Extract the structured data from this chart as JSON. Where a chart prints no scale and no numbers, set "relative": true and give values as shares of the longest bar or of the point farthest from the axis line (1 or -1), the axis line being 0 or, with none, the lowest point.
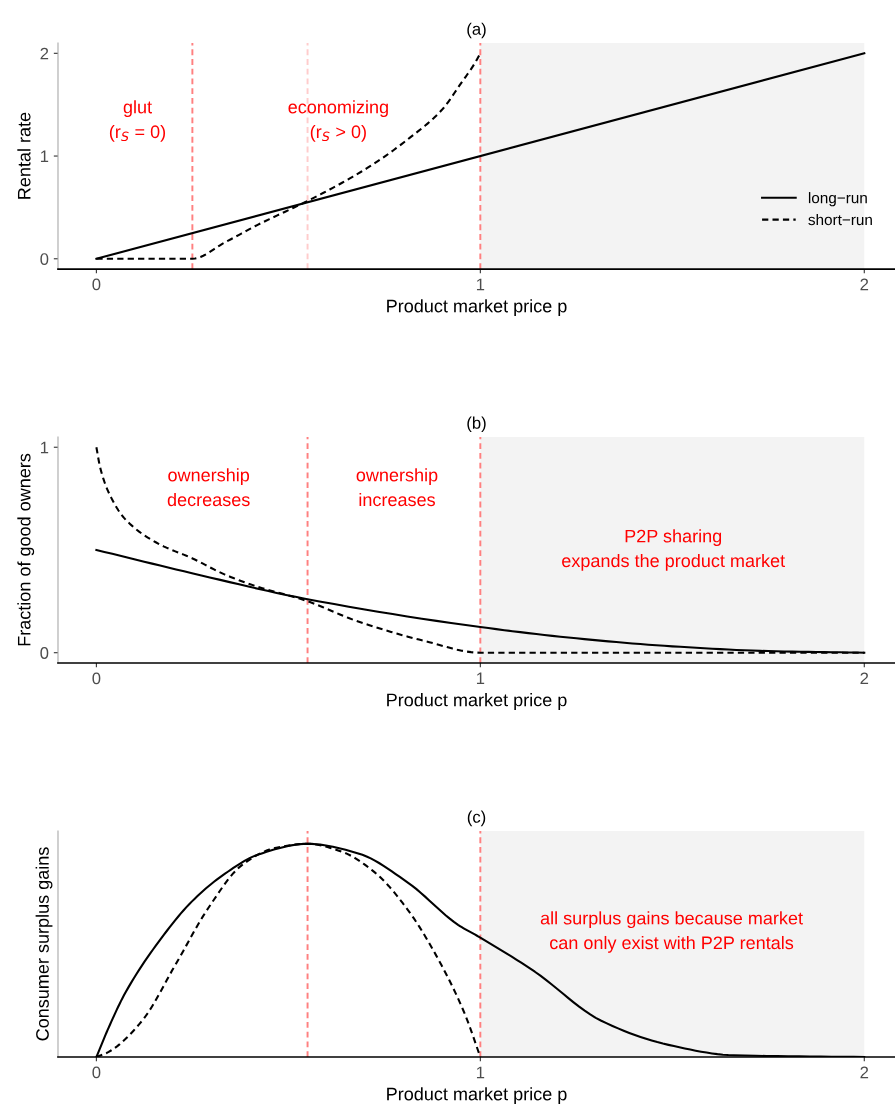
{
  "chart_data": [
    {
      "type": "line",
      "title": "(a)",
      "xlabel": "Product market price p",
      "ylabel": "Rental rate",
      "xlim": [
        -0.1,
        2.08
      ],
      "ylim": [
        -0.1,
        2.1
      ],
      "xticks": [
        0,
        1,
        2
      ],
      "yticks": [
        0,
        1,
        2
      ],
      "grid": false,
      "legend": "right",
      "series": [
        {
          "name": "long−run",
          "color": "#000000",
          "line_style": "solid",
          "x": [
            0,
            2
          ],
          "values": [
            0,
            2
          ]
        },
        {
          "name": "short−run",
          "color": "#000000",
          "line_style": "dashed",
          "x": [
            0,
            0.25,
            0.335,
            0.42,
            0.543,
            0.64,
            0.725,
            0.81,
            0.9,
            0.95,
            0.985,
            1.0
          ],
          "values": [
            0,
            0,
            0.16,
            0.33,
            0.55,
            0.74,
            0.93,
            1.16,
            1.45,
            1.71,
            1.9,
            2.0
          ]
        }
      ],
      "ref_lines": [
        {
          "axis": "x",
          "value": 0.25,
          "color": "#ff8080",
          "line_style": "dashed"
        },
        {
          "axis": "x",
          "value": 0.55,
          "color": "#ffcccc",
          "line_style": "dashed"
        },
        {
          "axis": "x",
          "value": 1,
          "color": "#ff8080",
          "line_style": "dashed"
        }
      ],
      "bands": [
        {
          "axis": "x",
          "from": 1,
          "to": 2,
          "color": "#f3f3f3"
        }
      ],
      "annotations": [
        "glut\n(r$_{S}$ = 0)",
        "economizing\n(r$_{S}$ > 0)"
      ]
    },
    {
      "type": "line",
      "title": "(b)",
      "xlabel": "Product market price p",
      "ylabel": "Fraction of good owners",
      "xlim": [
        -0.1,
        2.08
      ],
      "ylim": [
        -0.05,
        1.05
      ],
      "xticks": [
        0,
        1,
        2
      ],
      "yticks": [
        0,
        1
      ],
      "grid": false,
      "series": [
        {
          "color": "#000000",
          "line_style": "solid",
          "x": [
            0,
            0.249,
            0.543,
            1.0,
            1.25,
            1.5,
            1.75,
            2.0
          ],
          "values": [
            0.5,
            0.387,
            0.263,
            0.125,
            0.07,
            0.031,
            0.008,
            0
          ]
        },
        {
          "color": "#000000",
          "line_style": "dashed",
          "x": [
            0,
            0.01,
            0.032,
            0.075,
            0.162,
            0.249,
            0.335,
            0.422,
            0.543,
            0.68,
            0.855,
            1.0,
            2.0
          ],
          "values": [
            1.0,
            0.9,
            0.78,
            0.65,
            0.53,
            0.46,
            0.38,
            0.32,
            0.255,
            0.153,
            0.057,
            0,
            0
          ]
        }
      ],
      "ref_lines": [
        {
          "axis": "x",
          "value": 0.55,
          "color": "#ff8080",
          "line_style": "dashed"
        },
        {
          "axis": "x",
          "value": 1,
          "color": "#ff8080",
          "line_style": "dashed"
        }
      ],
      "bands": [
        {
          "axis": "x",
          "from": 1,
          "to": 2,
          "color": "#f3f3f3"
        }
      ],
      "annotations": [
        "ownership\ndecreases",
        "ownership\nincreases",
        "P2P sharing\nexpands the product market"
      ]
    },
    {
      "type": "line",
      "title": "(c)",
      "xlabel": "Product market price p",
      "ylabel": "Consumer surplus gains",
      "xlim": [
        -0.1,
        2.08
      ],
      "xticks": [
        0,
        1,
        2
      ],
      "relative": true,
      "grid": false,
      "series": [
        {
          "color": "#000000",
          "line_style": "solid",
          "x": [
            0,
            0.032,
            0.075,
            0.162,
            0.249,
            0.335,
            0.422,
            0.55,
            0.682,
            0.812,
            0.942,
            1.0,
            1.142,
            1.315,
            1.49,
            1.66,
            2.0
          ],
          "values": [
            0,
            0.138,
            0.3,
            0.54,
            0.73,
            0.86,
            0.95,
            1.0,
            0.955,
            0.817,
            0.62,
            0.56,
            0.4,
            0.17,
            0.057,
            0.008,
            0
          ]
        },
        {
          "color": "#000000",
          "line_style": "dashed",
          "x": [
            0,
            0.032,
            0.119,
            0.205,
            0.292,
            0.379,
            0.465,
            0.55,
            0.639,
            0.725,
            0.812,
            0.899,
            0.96,
            1.0
          ],
          "values": [
            0,
            0.024,
            0.17,
            0.43,
            0.7,
            0.9,
            0.98,
            1.0,
            0.963,
            0.866,
            0.688,
            0.43,
            0.2,
            0
          ]
        }
      ],
      "ref_lines": [
        {
          "axis": "x",
          "value": 0.55,
          "color": "#ff8080",
          "line_style": "dashed"
        },
        {
          "axis": "x",
          "value": 1,
          "color": "#ff8080",
          "line_style": "dashed"
        }
      ],
      "bands": [
        {
          "axis": "x",
          "from": 1,
          "to": 2,
          "color": "#f3f3f3"
        }
      ],
      "annotations": [
        "all surplus gains because market\ncan only exist with P2P rentals"
      ]
    }
  ]
}
